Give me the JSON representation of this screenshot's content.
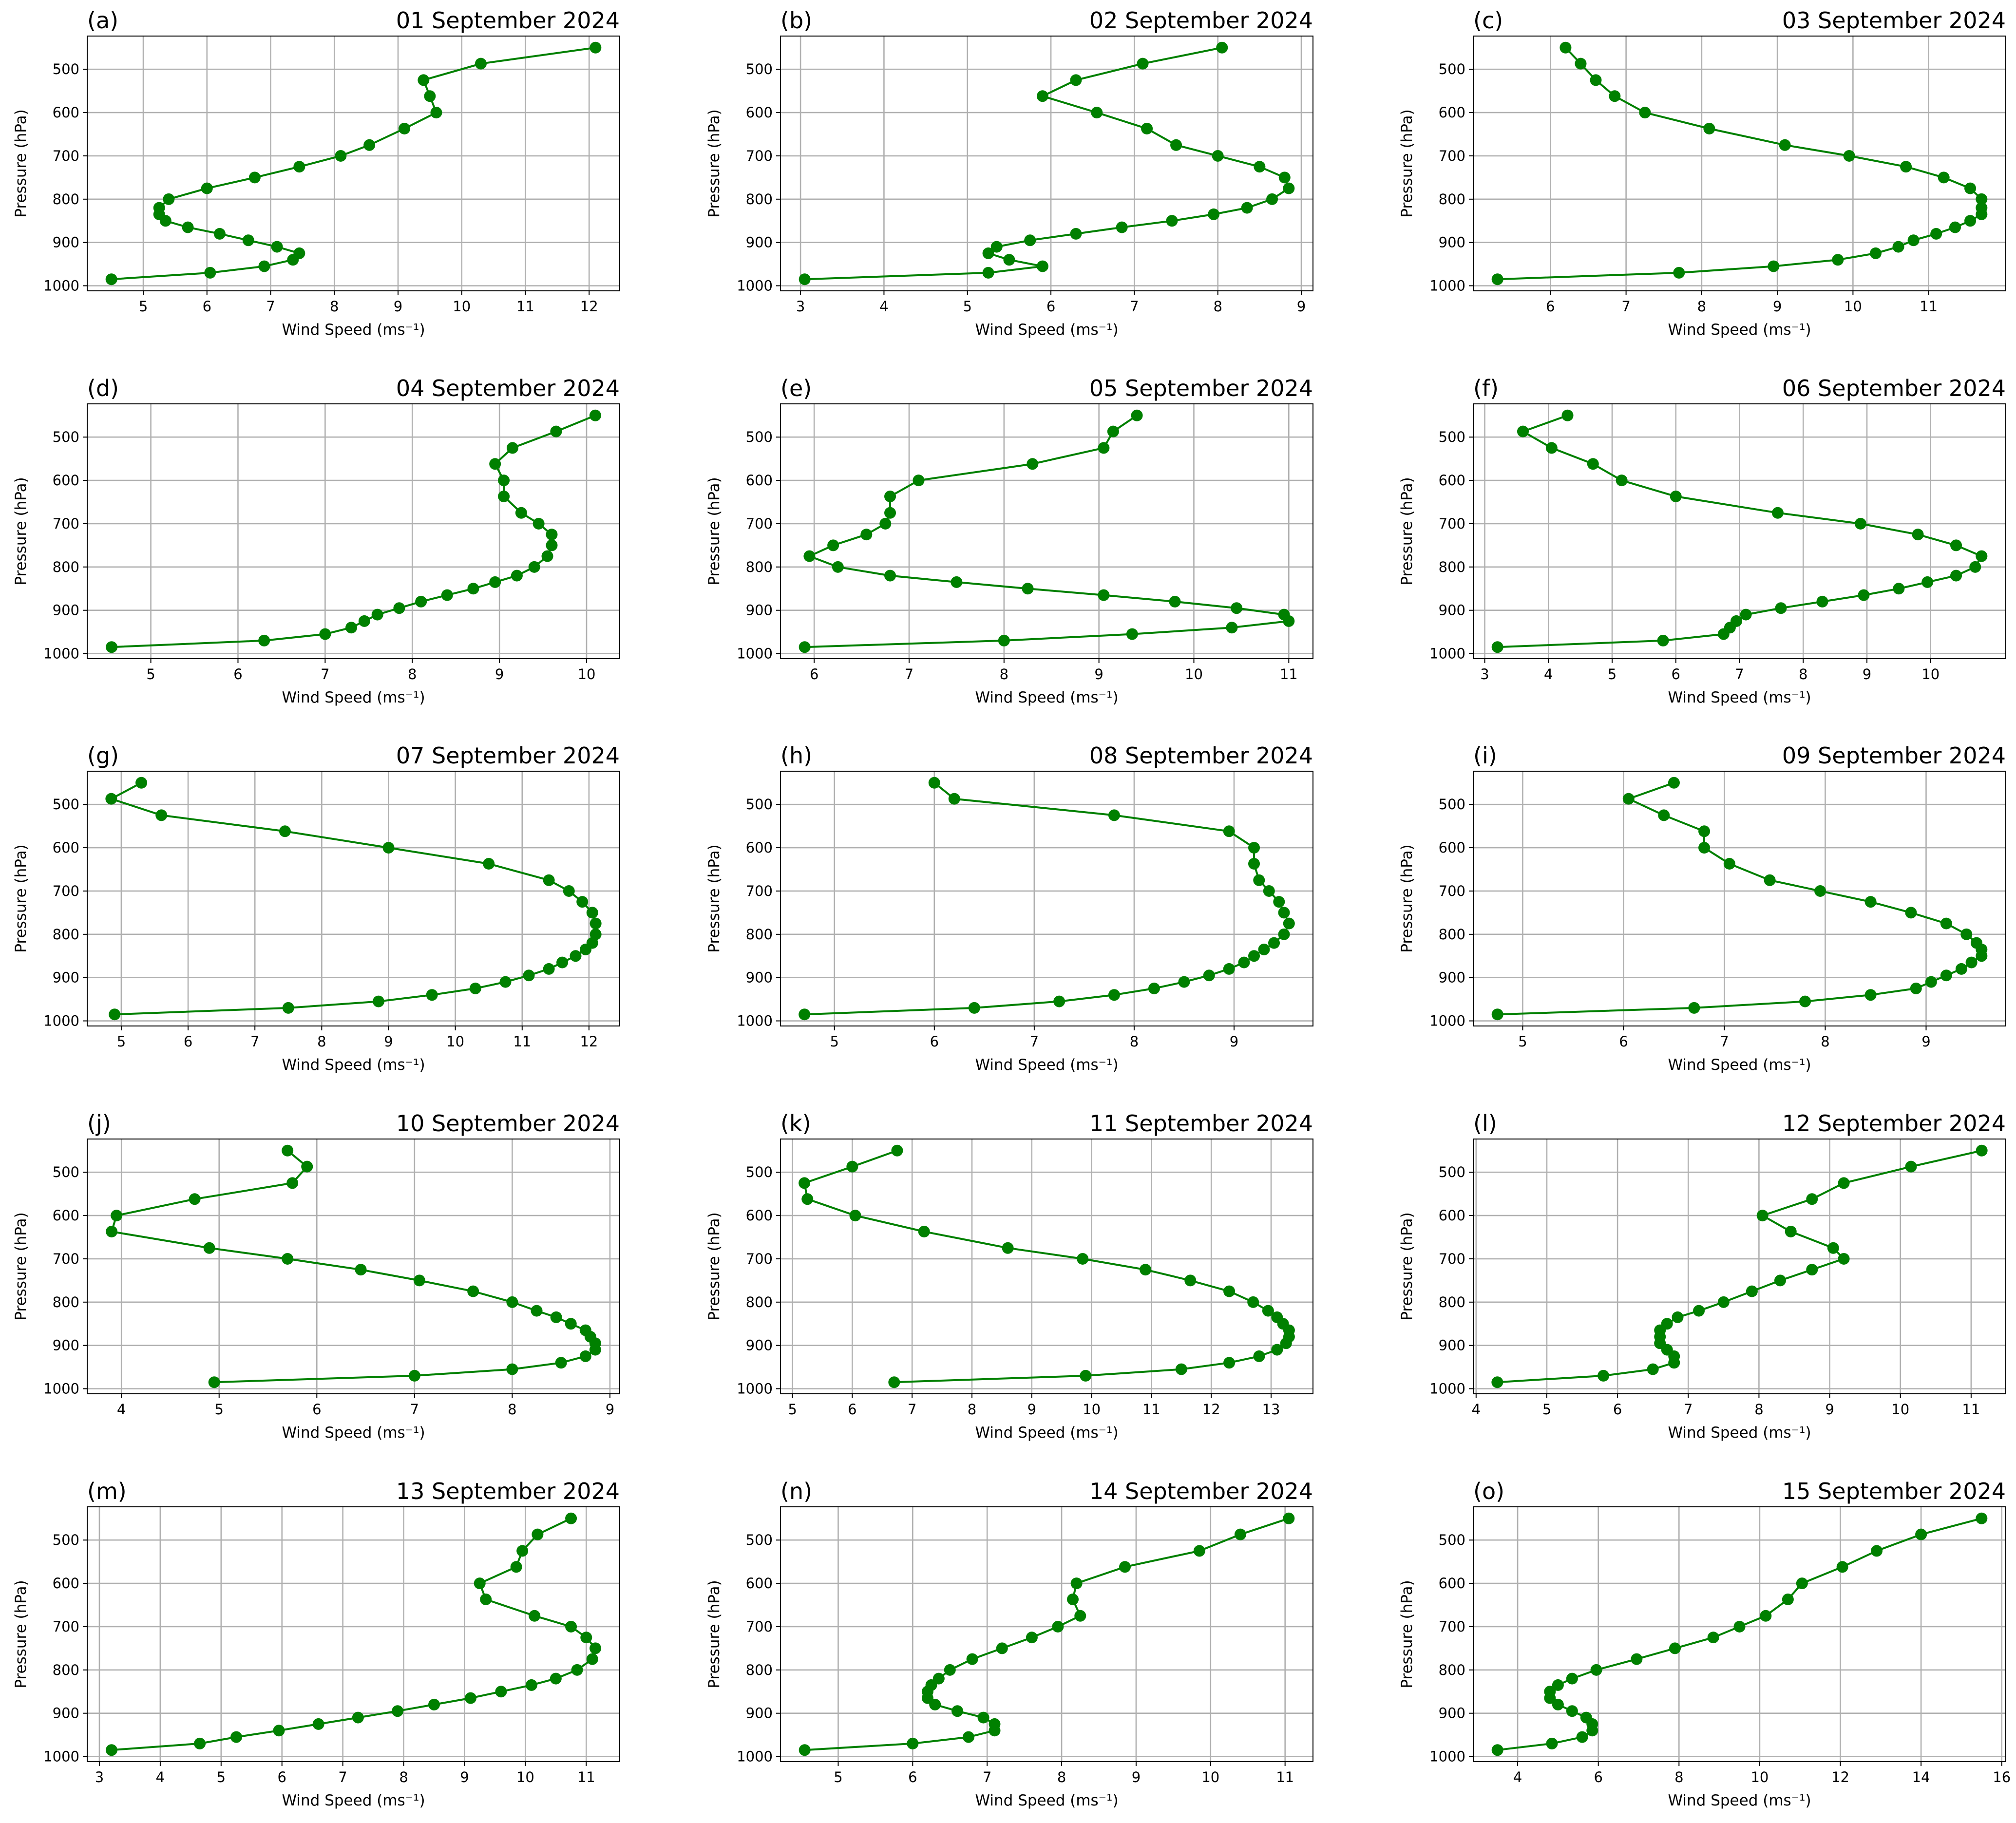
{
  "chart_data": [
    {
      "type": "line",
      "label": "(a)",
      "title": "01 September 2024",
      "xlabel": "Wind Speed (ms⁻¹)",
      "ylabel": "Pressure (hPa)",
      "color": "#008000",
      "grid": true,
      "x": [
        12.1,
        10.3,
        9.4,
        9.5,
        9.6,
        9.1,
        8.55,
        8.1,
        7.45,
        6.75,
        6.0,
        5.4,
        5.25,
        5.25,
        5.35,
        5.7,
        6.2,
        6.65,
        7.1,
        7.45,
        7.35,
        6.9,
        6.05,
        4.5
      ],
      "values": [
        450,
        487,
        525,
        562,
        600,
        637,
        675,
        700,
        725,
        750,
        775,
        800,
        820,
        835,
        850,
        865,
        880,
        895,
        910,
        925,
        940,
        955,
        970,
        985
      ],
      "xlim": [
        4.12,
        12.48
      ],
      "xticks": [
        5,
        6,
        7,
        8,
        9,
        10,
        11,
        12
      ],
      "ylim": [
        1011.75,
        423.25
      ],
      "yticks": [
        500,
        600,
        700,
        800,
        900,
        1000
      ]
    },
    {
      "type": "line",
      "label": "(b)",
      "title": "02 September 2024",
      "xlabel": "Wind Speed (ms⁻¹)",
      "ylabel": "Pressure (hPa)",
      "color": "#008000",
      "grid": true,
      "x": [
        8.05,
        7.1,
        6.3,
        5.9,
        6.55,
        7.15,
        7.5,
        8.0,
        8.5,
        8.8,
        8.85,
        8.65,
        8.35,
        7.95,
        7.45,
        6.85,
        6.3,
        5.75,
        5.35,
        5.25,
        5.5,
        5.9,
        5.25,
        3.05
      ],
      "values": [
        450,
        487,
        525,
        562,
        600,
        637,
        675,
        700,
        725,
        750,
        775,
        800,
        820,
        835,
        850,
        865,
        880,
        895,
        910,
        925,
        940,
        955,
        970,
        985
      ],
      "xlim": [
        2.76,
        9.14
      ],
      "xticks": [
        3,
        4,
        5,
        6,
        7,
        8,
        9
      ],
      "ylim": [
        1011.75,
        423.25
      ],
      "yticks": [
        500,
        600,
        700,
        800,
        900,
        1000
      ]
    },
    {
      "type": "line",
      "label": "(c)",
      "title": "03 September 2024",
      "xlabel": "Wind Speed (ms⁻¹)",
      "ylabel": "Pressure (hPa)",
      "color": "#008000",
      "grid": true,
      "x": [
        6.2,
        6.4,
        6.6,
        6.85,
        7.25,
        8.1,
        9.1,
        9.95,
        10.7,
        11.2,
        11.55,
        11.7,
        11.7,
        11.7,
        11.55,
        11.35,
        11.1,
        10.8,
        10.6,
        10.3,
        9.8,
        8.95,
        7.7,
        5.3
      ],
      "values": [
        450,
        487,
        525,
        562,
        600,
        637,
        675,
        700,
        725,
        750,
        775,
        800,
        820,
        835,
        850,
        865,
        880,
        895,
        910,
        925,
        940,
        955,
        970,
        985
      ],
      "xlim": [
        4.98,
        12.02
      ],
      "xticks": [
        6,
        7,
        8,
        9,
        10,
        11
      ],
      "ylim": [
        1011.75,
        423.25
      ],
      "yticks": [
        500,
        600,
        700,
        800,
        900,
        1000
      ]
    },
    {
      "type": "line",
      "label": "(d)",
      "title": "04 September 2024",
      "xlabel": "Wind Speed (ms⁻¹)",
      "ylabel": "Pressure (hPa)",
      "color": "#008000",
      "grid": true,
      "x": [
        10.1,
        9.65,
        9.15,
        8.95,
        9.05,
        9.05,
        9.25,
        9.45,
        9.6,
        9.6,
        9.55,
        9.4,
        9.2,
        8.95,
        8.7,
        8.4,
        8.1,
        7.85,
        7.6,
        7.45,
        7.3,
        7.0,
        6.3,
        4.55
      ],
      "values": [
        450,
        487,
        525,
        562,
        600,
        637,
        675,
        700,
        725,
        750,
        775,
        800,
        820,
        835,
        850,
        865,
        880,
        895,
        910,
        925,
        940,
        955,
        970,
        985
      ],
      "xlim": [
        4.27,
        10.38
      ],
      "xticks": [
        5,
        6,
        7,
        8,
        9,
        10
      ],
      "ylim": [
        1011.75,
        423.25
      ],
      "yticks": [
        500,
        600,
        700,
        800,
        900,
        1000
      ]
    },
    {
      "type": "line",
      "label": "(e)",
      "title": "05 September 2024",
      "xlabel": "Wind Speed (ms⁻¹)",
      "ylabel": "Pressure (hPa)",
      "color": "#008000",
      "grid": true,
      "x": [
        9.4,
        9.15,
        9.05,
        8.3,
        7.1,
        6.8,
        6.8,
        6.75,
        6.55,
        6.2,
        5.95,
        6.25,
        6.8,
        7.5,
        8.25,
        9.05,
        9.8,
        10.45,
        10.95,
        11.0,
        10.4,
        9.35,
        8.0,
        5.9
      ],
      "values": [
        450,
        487,
        525,
        562,
        600,
        637,
        675,
        700,
        725,
        750,
        775,
        800,
        820,
        835,
        850,
        865,
        880,
        895,
        910,
        925,
        940,
        955,
        970,
        985
      ],
      "xlim": [
        5.645,
        11.255
      ],
      "xticks": [
        6,
        7,
        8,
        9,
        10,
        11
      ],
      "ylim": [
        1011.75,
        423.25
      ],
      "yticks": [
        500,
        600,
        700,
        800,
        900,
        1000
      ]
    },
    {
      "type": "line",
      "label": "(f)",
      "title": "06 September 2024",
      "xlabel": "Wind Speed (ms⁻¹)",
      "ylabel": "Pressure (hPa)",
      "color": "#008000",
      "grid": true,
      "x": [
        4.3,
        3.6,
        4.05,
        4.7,
        5.15,
        6.0,
        7.6,
        8.9,
        9.8,
        10.4,
        10.8,
        10.7,
        10.4,
        9.95,
        9.5,
        8.95,
        8.3,
        7.65,
        7.1,
        6.95,
        6.85,
        6.75,
        5.8,
        3.2
      ],
      "values": [
        450,
        487,
        525,
        562,
        600,
        637,
        675,
        700,
        725,
        750,
        775,
        800,
        820,
        835,
        850,
        865,
        880,
        895,
        910,
        925,
        940,
        955,
        970,
        985
      ],
      "xlim": [
        2.82,
        11.18
      ],
      "xticks": [
        3,
        4,
        5,
        6,
        7,
        8,
        9,
        10
      ],
      "ylim": [
        1011.75,
        423.25
      ],
      "yticks": [
        500,
        600,
        700,
        800,
        900,
        1000
      ]
    },
    {
      "type": "line",
      "label": "(g)",
      "title": "07 September 2024",
      "xlabel": "Wind Speed (ms⁻¹)",
      "ylabel": "Pressure (hPa)",
      "color": "#008000",
      "grid": true,
      "x": [
        5.3,
        4.85,
        5.6,
        7.45,
        9.0,
        10.5,
        11.4,
        11.7,
        11.9,
        12.05,
        12.1,
        12.1,
        12.05,
        11.95,
        11.8,
        11.6,
        11.4,
        11.1,
        10.75,
        10.3,
        9.65,
        8.85,
        7.5,
        4.9
      ],
      "values": [
        450,
        487,
        525,
        562,
        600,
        637,
        675,
        700,
        725,
        750,
        775,
        800,
        820,
        835,
        850,
        865,
        880,
        895,
        910,
        925,
        940,
        955,
        970,
        985
      ],
      "xlim": [
        4.49,
        12.46
      ],
      "xticks": [
        5,
        6,
        7,
        8,
        9,
        10,
        11,
        12
      ],
      "ylim": [
        1011.75,
        423.25
      ],
      "yticks": [
        500,
        600,
        700,
        800,
        900,
        1000
      ]
    },
    {
      "type": "line",
      "label": "(h)",
      "title": "08 September 2024",
      "xlabel": "Wind Speed (ms⁻¹)",
      "ylabel": "Pressure (hPa)",
      "color": "#008000",
      "grid": true,
      "x": [
        6.0,
        6.2,
        7.8,
        8.95,
        9.2,
        9.2,
        9.25,
        9.35,
        9.45,
        9.5,
        9.55,
        9.5,
        9.4,
        9.3,
        9.2,
        9.1,
        8.95,
        8.75,
        8.5,
        8.2,
        7.8,
        7.25,
        6.4,
        4.7
      ],
      "values": [
        450,
        487,
        525,
        562,
        600,
        637,
        675,
        700,
        725,
        750,
        775,
        800,
        820,
        835,
        850,
        865,
        880,
        895,
        910,
        925,
        940,
        955,
        970,
        985
      ],
      "xlim": [
        4.46,
        9.79
      ],
      "xticks": [
        5,
        6,
        7,
        8,
        9
      ],
      "ylim": [
        1011.75,
        423.25
      ],
      "yticks": [
        500,
        600,
        700,
        800,
        900,
        1000
      ]
    },
    {
      "type": "line",
      "label": "(i)",
      "title": "09 September 2024",
      "xlabel": "Wind Speed (ms⁻¹)",
      "ylabel": "Pressure (hPa)",
      "color": "#008000",
      "grid": true,
      "x": [
        6.5,
        6.05,
        6.4,
        6.8,
        6.8,
        7.05,
        7.45,
        7.95,
        8.45,
        8.85,
        9.2,
        9.4,
        9.5,
        9.55,
        9.55,
        9.45,
        9.35,
        9.2,
        9.05,
        8.9,
        8.45,
        7.8,
        6.7,
        4.75
      ],
      "values": [
        450,
        487,
        525,
        562,
        600,
        637,
        675,
        700,
        725,
        750,
        775,
        800,
        820,
        835,
        850,
        865,
        880,
        895,
        910,
        925,
        940,
        955,
        970,
        985
      ],
      "xlim": [
        4.51,
        9.79
      ],
      "xticks": [
        5,
        6,
        7,
        8,
        9
      ],
      "ylim": [
        1011.75,
        423.25
      ],
      "yticks": [
        500,
        600,
        700,
        800,
        900,
        1000
      ]
    },
    {
      "type": "line",
      "label": "(j)",
      "title": "10 September 2024",
      "xlabel": "Wind Speed (ms⁻¹)",
      "ylabel": "Pressure (hPa)",
      "color": "#008000",
      "grid": true,
      "x": [
        5.7,
        5.9,
        5.75,
        4.75,
        3.95,
        3.9,
        4.9,
        5.7,
        6.45,
        7.05,
        7.6,
        8.0,
        8.25,
        8.45,
        8.6,
        8.75,
        8.8,
        8.85,
        8.85,
        8.75,
        8.5,
        8.0,
        7.0,
        4.95
      ],
      "values": [
        450,
        487,
        525,
        562,
        600,
        637,
        675,
        700,
        725,
        750,
        775,
        800,
        820,
        835,
        850,
        865,
        880,
        895,
        910,
        925,
        940,
        955,
        970,
        985
      ],
      "xlim": [
        3.65,
        9.1
      ],
      "xticks": [
        4,
        5,
        6,
        7,
        8,
        9
      ],
      "ylim": [
        1011.75,
        423.25
      ],
      "yticks": [
        500,
        600,
        700,
        800,
        900,
        1000
      ]
    },
    {
      "type": "line",
      "label": "(k)",
      "title": "11 September 2024",
      "xlabel": "Wind Speed (ms⁻¹)",
      "ylabel": "Pressure (hPa)",
      "color": "#008000",
      "grid": true,
      "x": [
        6.75,
        6.0,
        5.2,
        5.25,
        6.05,
        7.2,
        8.6,
        9.85,
        10.9,
        11.65,
        12.3,
        12.7,
        12.95,
        13.1,
        13.2,
        13.3,
        13.3,
        13.25,
        13.1,
        12.8,
        12.3,
        11.5,
        9.9,
        6.7
      ],
      "values": [
        450,
        487,
        525,
        562,
        600,
        637,
        675,
        700,
        725,
        750,
        775,
        800,
        820,
        835,
        850,
        865,
        880,
        895,
        910,
        925,
        940,
        955,
        970,
        985
      ],
      "xlim": [
        4.8,
        13.7
      ],
      "xticks": [
        5,
        6,
        7,
        8,
        9,
        10,
        11,
        12,
        13
      ],
      "ylim": [
        1011.75,
        423.25
      ],
      "yticks": [
        500,
        600,
        700,
        800,
        900,
        1000
      ]
    },
    {
      "type": "line",
      "label": "(l)",
      "title": "12 September 2024",
      "xlabel": "Wind Speed (ms⁻¹)",
      "ylabel": "Pressure (hPa)",
      "color": "#008000",
      "grid": true,
      "x": [
        11.15,
        10.15,
        9.2,
        8.75,
        8.05,
        8.45,
        9.05,
        9.2,
        8.75,
        8.3,
        7.9,
        7.5,
        7.15,
        6.85,
        6.7,
        6.6,
        6.6,
        6.6,
        6.7,
        6.8,
        6.8,
        6.5,
        5.8,
        4.3
      ],
      "values": [
        450,
        487,
        525,
        562,
        600,
        637,
        675,
        700,
        725,
        750,
        775,
        800,
        820,
        835,
        850,
        865,
        880,
        895,
        910,
        925,
        940,
        955,
        970,
        985
      ],
      "xlim": [
        3.96,
        11.49
      ],
      "xticks": [
        4,
        5,
        6,
        7,
        8,
        9,
        10,
        11
      ],
      "ylim": [
        1011.75,
        423.25
      ],
      "yticks": [
        500,
        600,
        700,
        800,
        900,
        1000
      ]
    },
    {
      "type": "line",
      "label": "(m)",
      "title": "13 September 2024",
      "xlabel": "Wind Speed (ms⁻¹)",
      "ylabel": "Pressure (hPa)",
      "color": "#008000",
      "grid": true,
      "x": [
        10.75,
        10.2,
        9.95,
        9.85,
        9.25,
        9.35,
        10.15,
        10.75,
        11.0,
        11.15,
        11.1,
        10.85,
        10.5,
        10.1,
        9.6,
        9.1,
        8.5,
        7.9,
        7.25,
        6.6,
        5.95,
        5.25,
        4.65,
        3.2
      ],
      "values": [
        450,
        487,
        525,
        562,
        600,
        637,
        675,
        700,
        725,
        750,
        775,
        800,
        820,
        835,
        850,
        865,
        880,
        895,
        910,
        925,
        940,
        955,
        970,
        985
      ],
      "xlim": [
        2.8,
        11.55
      ],
      "xticks": [
        3,
        4,
        5,
        6,
        7,
        8,
        9,
        10,
        11
      ],
      "ylim": [
        1011.75,
        423.25
      ],
      "yticks": [
        500,
        600,
        700,
        800,
        900,
        1000
      ]
    },
    {
      "type": "line",
      "label": "(n)",
      "title": "14 September 2024",
      "xlabel": "Wind Speed (ms⁻¹)",
      "ylabel": "Pressure (hPa)",
      "color": "#008000",
      "grid": true,
      "x": [
        11.05,
        10.4,
        9.85,
        8.85,
        8.2,
        8.15,
        8.25,
        7.95,
        7.6,
        7.2,
        6.8,
        6.5,
        6.35,
        6.25,
        6.2,
        6.2,
        6.3,
        6.6,
        6.95,
        7.1,
        7.1,
        6.75,
        6.0,
        4.55
      ],
      "values": [
        450,
        487,
        525,
        562,
        600,
        637,
        675,
        700,
        725,
        750,
        775,
        800,
        820,
        835,
        850,
        865,
        880,
        895,
        910,
        925,
        940,
        955,
        970,
        985
      ],
      "xlim": [
        4.225,
        11.375
      ],
      "xticks": [
        5,
        6,
        7,
        8,
        9,
        10,
        11
      ],
      "ylim": [
        1011.75,
        423.25
      ],
      "yticks": [
        500,
        600,
        700,
        800,
        900,
        1000
      ]
    },
    {
      "type": "line",
      "label": "(o)",
      "title": "15 September 2024",
      "xlabel": "Wind Speed (ms⁻¹)",
      "ylabel": "Pressure (hPa)",
      "color": "#008000",
      "grid": true,
      "x": [
        15.5,
        14.0,
        12.9,
        12.05,
        11.05,
        10.7,
        10.15,
        9.5,
        8.85,
        7.9,
        6.95,
        5.95,
        5.35,
        5.0,
        4.8,
        4.8,
        5.0,
        5.35,
        5.7,
        5.85,
        5.85,
        5.6,
        4.85,
        3.5
      ],
      "values": [
        450,
        487,
        525,
        562,
        600,
        637,
        675,
        700,
        725,
        750,
        775,
        800,
        820,
        835,
        850,
        865,
        880,
        895,
        910,
        925,
        940,
        955,
        970,
        985
      ],
      "xlim": [
        2.9,
        16.1
      ],
      "xticks": [
        4,
        6,
        8,
        10,
        12,
        14,
        16
      ],
      "ylim": [
        1011.75,
        423.25
      ],
      "yticks": [
        500,
        600,
        700,
        800,
        900,
        1000
      ]
    }
  ]
}
